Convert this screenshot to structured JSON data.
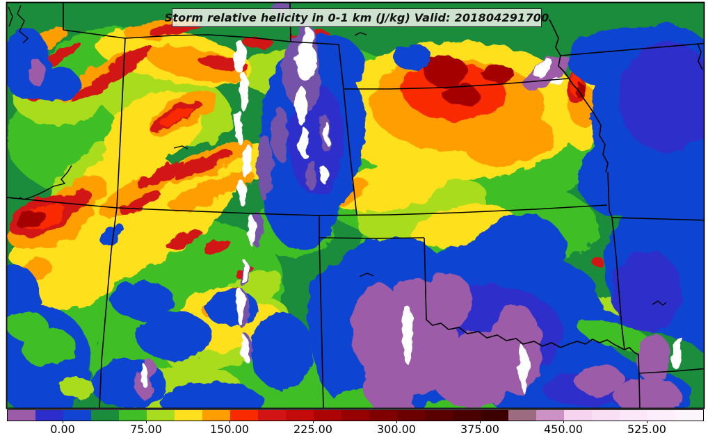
{
  "figure": {
    "title": "Storm relative helicity in 0-1 km (J/kg) Valid: 201804291700",
    "background_color": "#ffffff",
    "frame_color": "#000000"
  },
  "colorbar": {
    "orientation": "horizontal",
    "min": -50,
    "max": 575,
    "segment_step": 25,
    "tick_values": [
      0,
      75,
      150,
      225,
      300,
      375,
      450,
      525
    ],
    "tick_labels": [
      "0.00",
      "75.00",
      "150.00",
      "225.00",
      "300.00",
      "375.00",
      "450.00",
      "525.00"
    ],
    "palette": [
      "#9C5BA8",
      "#2D2DCB",
      "#1144D2",
      "#1B8C3C",
      "#3FBE27",
      "#A8DC1F",
      "#FFE01E",
      "#FF9E00",
      "#F92A00",
      "#D21414",
      "#C40A0A",
      "#AC0404",
      "#960000",
      "#800000",
      "#6C0000",
      "#5A0000",
      "#4A0000",
      "#3C0000",
      "#9D6B80",
      "#CD92C5",
      "#F6D3EE",
      "#F9DFF4",
      "#FBE7F7",
      "#FCEEFA",
      "#FDF5FC"
    ]
  },
  "chart_data": {
    "type": "heatmap",
    "title": "Storm relative helicity in 0-1 km (J/kg)",
    "valid_time": "201804291700",
    "variable": "storm relative helicity, 0-1 km layer",
    "units": "J/kg",
    "value_range": [
      -50,
      575
    ],
    "colorbar_ticks": [
      0,
      75,
      150,
      225,
      300,
      375,
      450,
      525
    ],
    "legend_position": "bottom",
    "region": "Central United States (UT, WY, CO, NE, KS, OK, TX panhandle, NM, MO, IA visible with state borders)",
    "notable_features": [
      "Broad maximum 150-250+ J/kg over central Nebraska",
      "Banded 100-200 J/kg streaks over Utah, Wyoming and the Colorado mountains",
      "Negative / near-zero helicity (blue-purple, below 0 J/kg) over Oklahoma, the Texas panhandle and Missouri",
      "Off-scale white streaks along the Colorado front range and in Oklahoma"
    ]
  }
}
